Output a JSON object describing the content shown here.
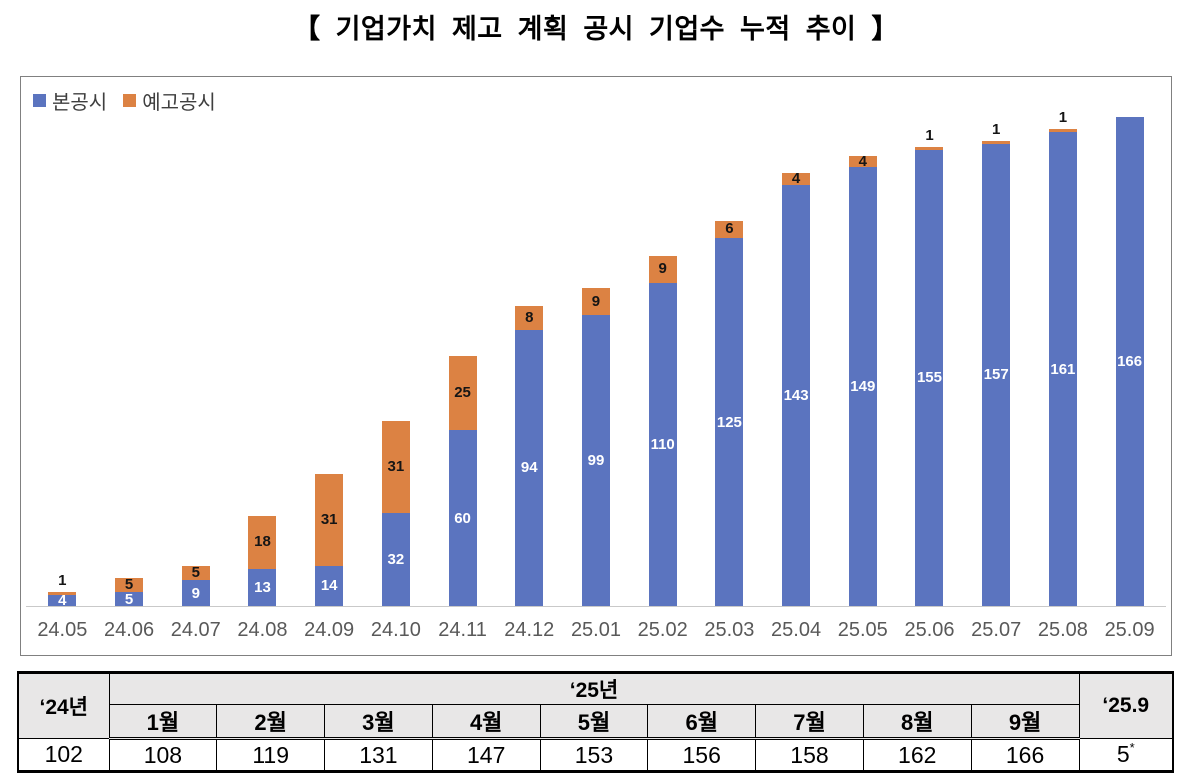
{
  "title": "【 기업가치 제고 계획 공시 기업수 누적 추이 】",
  "chart_data": {
    "type": "bar",
    "stacked": true,
    "title": "기업가치 제고 계획 공시 기업수 누적 추이",
    "xlabel": "",
    "ylabel": "",
    "ylim": [
      0,
      170
    ],
    "grid": false,
    "legend_position": "top-left",
    "categories": [
      "24.05",
      "24.06",
      "24.07",
      "24.08",
      "24.09",
      "24.10",
      "24.11",
      "24.12",
      "25.01",
      "25.02",
      "25.03",
      "25.04",
      "25.05",
      "25.06",
      "25.07",
      "25.08",
      "25.09"
    ],
    "series": [
      {
        "name": "본공시",
        "color": "#5B74BF",
        "label_color": "#ffffff",
        "values": [
          4,
          5,
          9,
          13,
          14,
          32,
          60,
          94,
          99,
          110,
          125,
          143,
          149,
          155,
          157,
          161,
          166
        ]
      },
      {
        "name": "예고공시",
        "color": "#DC8243",
        "label_color": "#151515",
        "values": [
          1,
          5,
          5,
          18,
          31,
          31,
          25,
          8,
          9,
          9,
          6,
          4,
          4,
          1,
          1,
          1,
          0
        ]
      }
    ],
    "totals": [
      5,
      10,
      14,
      31,
      45,
      63,
      85,
      102,
      108,
      119,
      131,
      147,
      153,
      156,
      158,
      162,
      166
    ],
    "axis_label_color": "#595959"
  },
  "table": {
    "col_2024_header": "‘24년",
    "col_2025_header": "‘25년",
    "col_259_header": "‘25.9",
    "month_headers": [
      "1월",
      "2월",
      "3월",
      "4월",
      "5월",
      "6월",
      "7월",
      "8월",
      "9월"
    ],
    "row": {
      "y2024": "102",
      "months": [
        "108",
        "119",
        "131",
        "147",
        "153",
        "156",
        "158",
        "162",
        "166"
      ],
      "y259_value": "5",
      "y259_marker": "*"
    }
  }
}
